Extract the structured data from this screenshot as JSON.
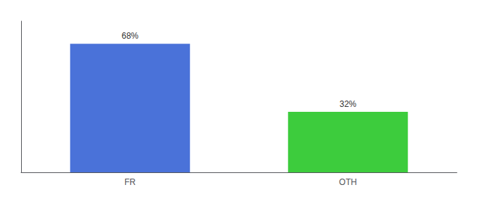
{
  "chart_data": {
    "type": "bar",
    "categories": [
      "FR",
      "OTH"
    ],
    "values": [
      68,
      32
    ],
    "value_labels": [
      "68%",
      "32%"
    ],
    "colors": [
      "#4a72d9",
      "#3dcc3d"
    ],
    "ylim": [
      0,
      80
    ],
    "yticks": [],
    "data_labels": true,
    "tick_labels": "x",
    "grid": false
  }
}
